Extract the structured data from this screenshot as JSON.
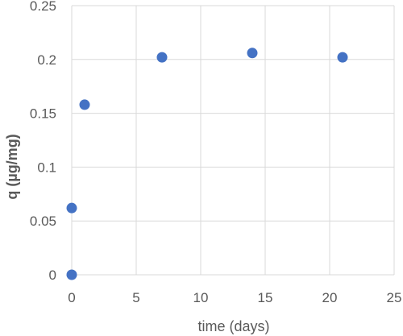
{
  "chart_data": {
    "type": "scatter",
    "title": "",
    "xlabel": "time (days)",
    "ylabel": "q (µg/mg)",
    "xlim": [
      0,
      25
    ],
    "ylim": [
      0,
      0.25
    ],
    "x_ticks": [
      "0",
      "5",
      "10",
      "15",
      "20",
      "25"
    ],
    "y_ticks": [
      "0",
      "0.05",
      "0.1",
      "0.15",
      "0.2",
      "0.25"
    ],
    "grid": true,
    "legend": "none",
    "marker_color": "#4472C4",
    "series": [
      {
        "x": [
          0,
          0,
          1,
          7,
          14,
          21
        ],
        "y": [
          0,
          0.062,
          0.158,
          0.202,
          0.206,
          0.202
        ]
      }
    ]
  }
}
